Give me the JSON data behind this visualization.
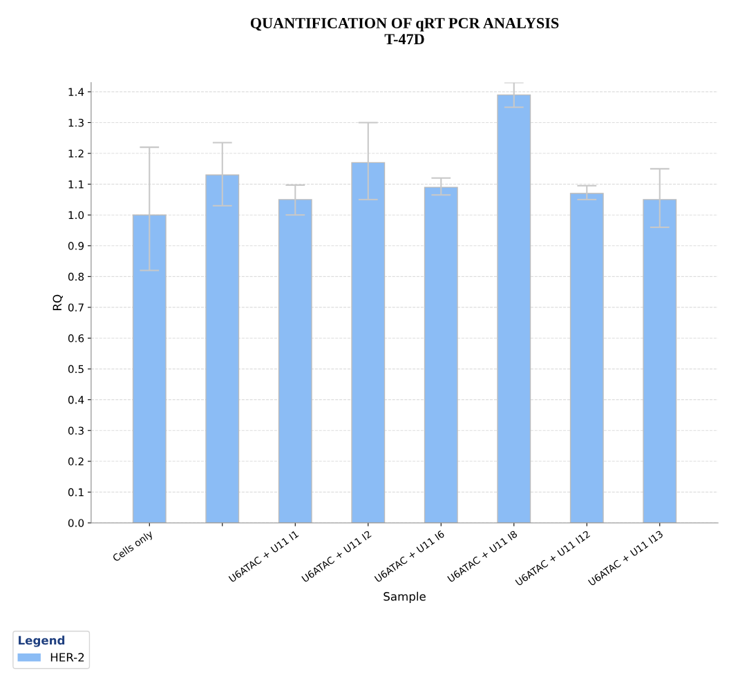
{
  "chart_data": {
    "type": "bar",
    "title": "QUANTIFICATION OF qRT PCR ANALYSIS\nT-47D",
    "xlabel": "Sample",
    "ylabel": "RQ",
    "legend_title": "Legend",
    "legend": "bottom",
    "categories": [
      "Cells only",
      null,
      "U6ATAC + U11 I1",
      "U6ATAC + U11 I2",
      "U6ATAC + U11 I6",
      "U6ATAC + U11 I8",
      "U6ATAC + U11 I12",
      "U6ATAC + U11 I13"
    ],
    "series": [
      {
        "name": "HER-2",
        "color": "#8bbcf5",
        "values": [
          1.0,
          1.13,
          1.05,
          1.17,
          1.09,
          1.39,
          1.07,
          1.05
        ],
        "errors": [
          [
            0.82,
            1.22
          ],
          [
            1.03,
            1.235
          ],
          [
            1.0,
            1.097
          ],
          [
            1.05,
            1.3
          ],
          [
            1.065,
            1.12
          ],
          [
            1.35,
            1.43
          ],
          [
            1.05,
            1.095
          ],
          [
            0.96,
            1.15
          ]
        ]
      }
    ],
    "ylim": [
      0,
      1.43
    ],
    "yticks": [
      {
        "value": 0,
        "label": "0.0"
      },
      0.1,
      0.2,
      0.3,
      0.4,
      0.5,
      0.6,
      0.7,
      0.8,
      0.9,
      {
        "value": 1,
        "label": "1.0"
      },
      1.1,
      1.2,
      1.3,
      1.4
    ],
    "grid": "y"
  }
}
